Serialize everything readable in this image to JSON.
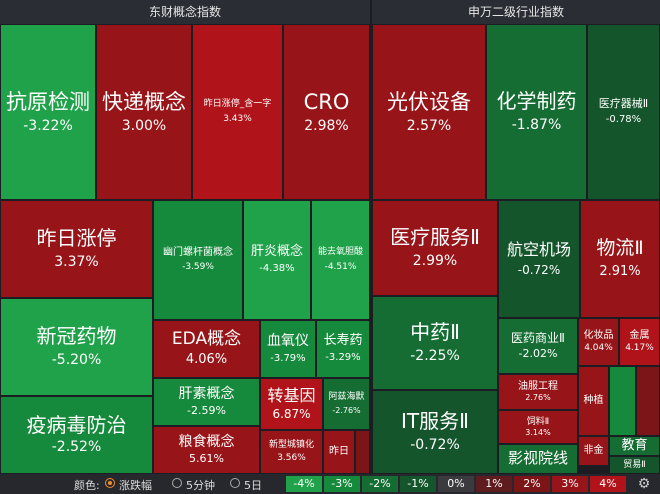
{
  "headers": {
    "left": "东财概念指数",
    "right": "申万二级行业指数"
  },
  "tiles": {
    "kangyuan": {
      "name": "抗原检测",
      "pct": "-3.22%"
    },
    "kuaidi": {
      "name": "快递概念",
      "pct": "3.00%"
    },
    "zuorizt_yz": {
      "name": "昨日涨停_含一字",
      "pct": "3.43%"
    },
    "cro": {
      "name": "CRO",
      "pct": "2.98%"
    },
    "zuorizt": {
      "name": "昨日涨停",
      "pct": "3.37%"
    },
    "youmen": {
      "name": "幽门螺杆菌概念",
      "pct": "-3.59%"
    },
    "ganyan": {
      "name": "肝炎概念",
      "pct": "-4.38%"
    },
    "nengqu": {
      "name": "能去氧胆酸",
      "pct": "-4.51%"
    },
    "xinguan": {
      "name": "新冠药物",
      "pct": "-5.20%"
    },
    "eda": {
      "name": "EDA概念",
      "pct": "4.06%"
    },
    "xueyang": {
      "name": "血氧仪",
      "pct": "-3.79%"
    },
    "changshou": {
      "name": "长寿药",
      "pct": "-3.29%"
    },
    "yibing": {
      "name": "疫病毒防治",
      "pct": "-2.52%"
    },
    "gansu": {
      "name": "肝素概念",
      "pct": "-2.59%"
    },
    "zhuanjiyin": {
      "name": "转基因",
      "pct": "6.87%"
    },
    "asihai": {
      "name": "阿兹海默",
      "pct": "-2.76%"
    },
    "liangshi": {
      "name": "粮食概念",
      "pct": "5.61%"
    },
    "xinchengzhen": {
      "name": "新型城镇化",
      "pct": "3.56%"
    },
    "zuori": {
      "name": "昨日",
      "pct": ""
    },
    "guangfu": {
      "name": "光伏设备",
      "pct": "2.57%"
    },
    "huaxue": {
      "name": "化学制药",
      "pct": "-1.87%"
    },
    "yiliaoqx": {
      "name": "医疗器械Ⅱ",
      "pct": "-0.78%"
    },
    "yiliaofw": {
      "name": "医疗服务Ⅱ",
      "pct": "2.99%"
    },
    "hangkong": {
      "name": "航空机场",
      "pct": "-0.72%"
    },
    "wuliu": {
      "name": "物流Ⅱ",
      "pct": "2.91%"
    },
    "zhongyao": {
      "name": "中药Ⅱ",
      "pct": "-2.25%"
    },
    "yiyaosy": {
      "name": "医药商业Ⅱ",
      "pct": "-2.02%"
    },
    "huazhuang": {
      "name": "化妆品",
      "pct": "4.04%"
    },
    "jinshu": {
      "name": "金属",
      "pct": "4.17%"
    },
    "youfu": {
      "name": "油服工程",
      "pct": "2.76%"
    },
    "siliao": {
      "name": "饲料Ⅱ",
      "pct": "3.14%"
    },
    "zhongzhi": {
      "name": "种植",
      "pct": ""
    },
    "itfw": {
      "name": "IT服务Ⅱ",
      "pct": "-0.72%"
    },
    "yingshi": {
      "name": "影视院线",
      "pct": ""
    },
    "feijin": {
      "name": "非金",
      "pct": ""
    },
    "jiaoyu": {
      "name": "教育",
      "pct": ""
    },
    "maoyi": {
      "name": "贸易Ⅱ",
      "pct": ""
    }
  },
  "legend": {
    "color_label": "颜色:",
    "options": [
      "涨跌幅",
      "5分钟",
      "5日"
    ],
    "selected": "涨跌幅",
    "scale": [
      "-4%",
      "-3%",
      "-2%",
      "-1%",
      "0%",
      "1%",
      "2%",
      "3%",
      "4%"
    ],
    "scale_colors": [
      "#1fa24a",
      "#168a3c",
      "#156d33",
      "#14552b",
      "#3a3a3f",
      "#5e1c1e",
      "#7c1518",
      "#971418",
      "#b0141a"
    ],
    "settings_icon": "gear-icon"
  }
}
